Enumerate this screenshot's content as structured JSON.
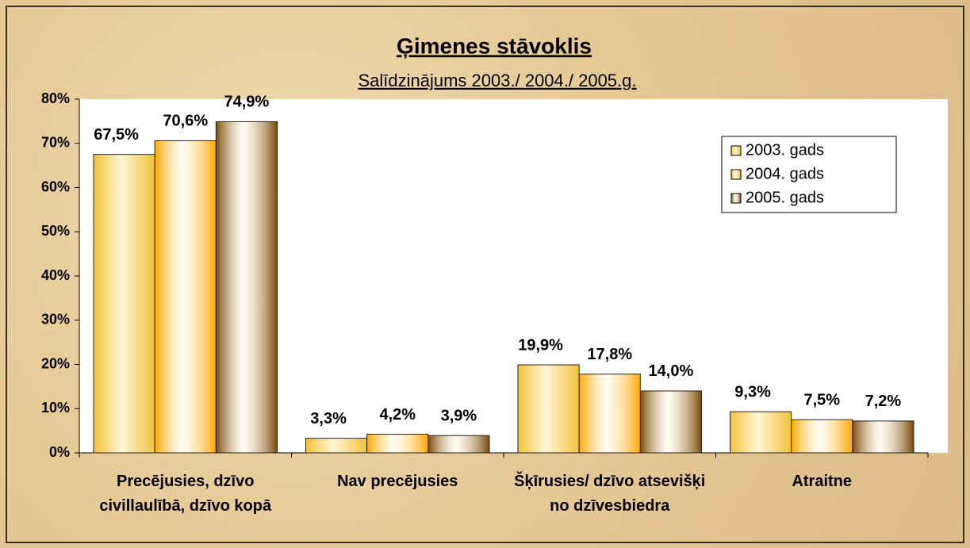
{
  "chart_data": {
    "type": "bar",
    "title": "Ģimenes stāvoklis",
    "subtitle": "Salīdzinājums 2003./ 2004./ 2005.g.",
    "categories": [
      "Precējusies, dzīvo civillaulībā, dzīvo kopā",
      "Nav precējusies",
      "Šķīrusies/ dzīvo atsevišķi no dzīvesbiedra",
      "Atraitne"
    ],
    "series": [
      {
        "name": "2003. gads",
        "color": "#f2c23a",
        "values": [
          67.5,
          3.3,
          19.9,
          9.3
        ],
        "value_labels": [
          "67,5%",
          "3,3%",
          "19,9%",
          "9,3%"
        ]
      },
      {
        "name": "2004. gads",
        "color": "#ffa800",
        "values": [
          70.6,
          4.2,
          17.8,
          7.5
        ],
        "value_labels": [
          "70,6%",
          "4,2%",
          "17,8%",
          "7,5%"
        ]
      },
      {
        "name": "2005. gads",
        "color": "#7a4a0c",
        "values": [
          74.9,
          3.9,
          14.0,
          7.2
        ],
        "value_labels": [
          "74,9%",
          "3,9%",
          "14,0%",
          "7,2%"
        ]
      }
    ],
    "ylim": [
      0,
      80
    ],
    "yticks": [
      {
        "value": 0,
        "label": "0%"
      },
      {
        "value": 10,
        "label": "10%"
      },
      {
        "value": 20,
        "label": "20%"
      },
      {
        "value": 30,
        "label": "30%"
      },
      {
        "value": 40,
        "label": "40%"
      },
      {
        "value": 50,
        "label": "50%"
      },
      {
        "value": 60,
        "label": "60%"
      },
      {
        "value": 70,
        "label": "70%"
      },
      {
        "value": 80,
        "label": "80%"
      }
    ],
    "legend": "upper right"
  }
}
